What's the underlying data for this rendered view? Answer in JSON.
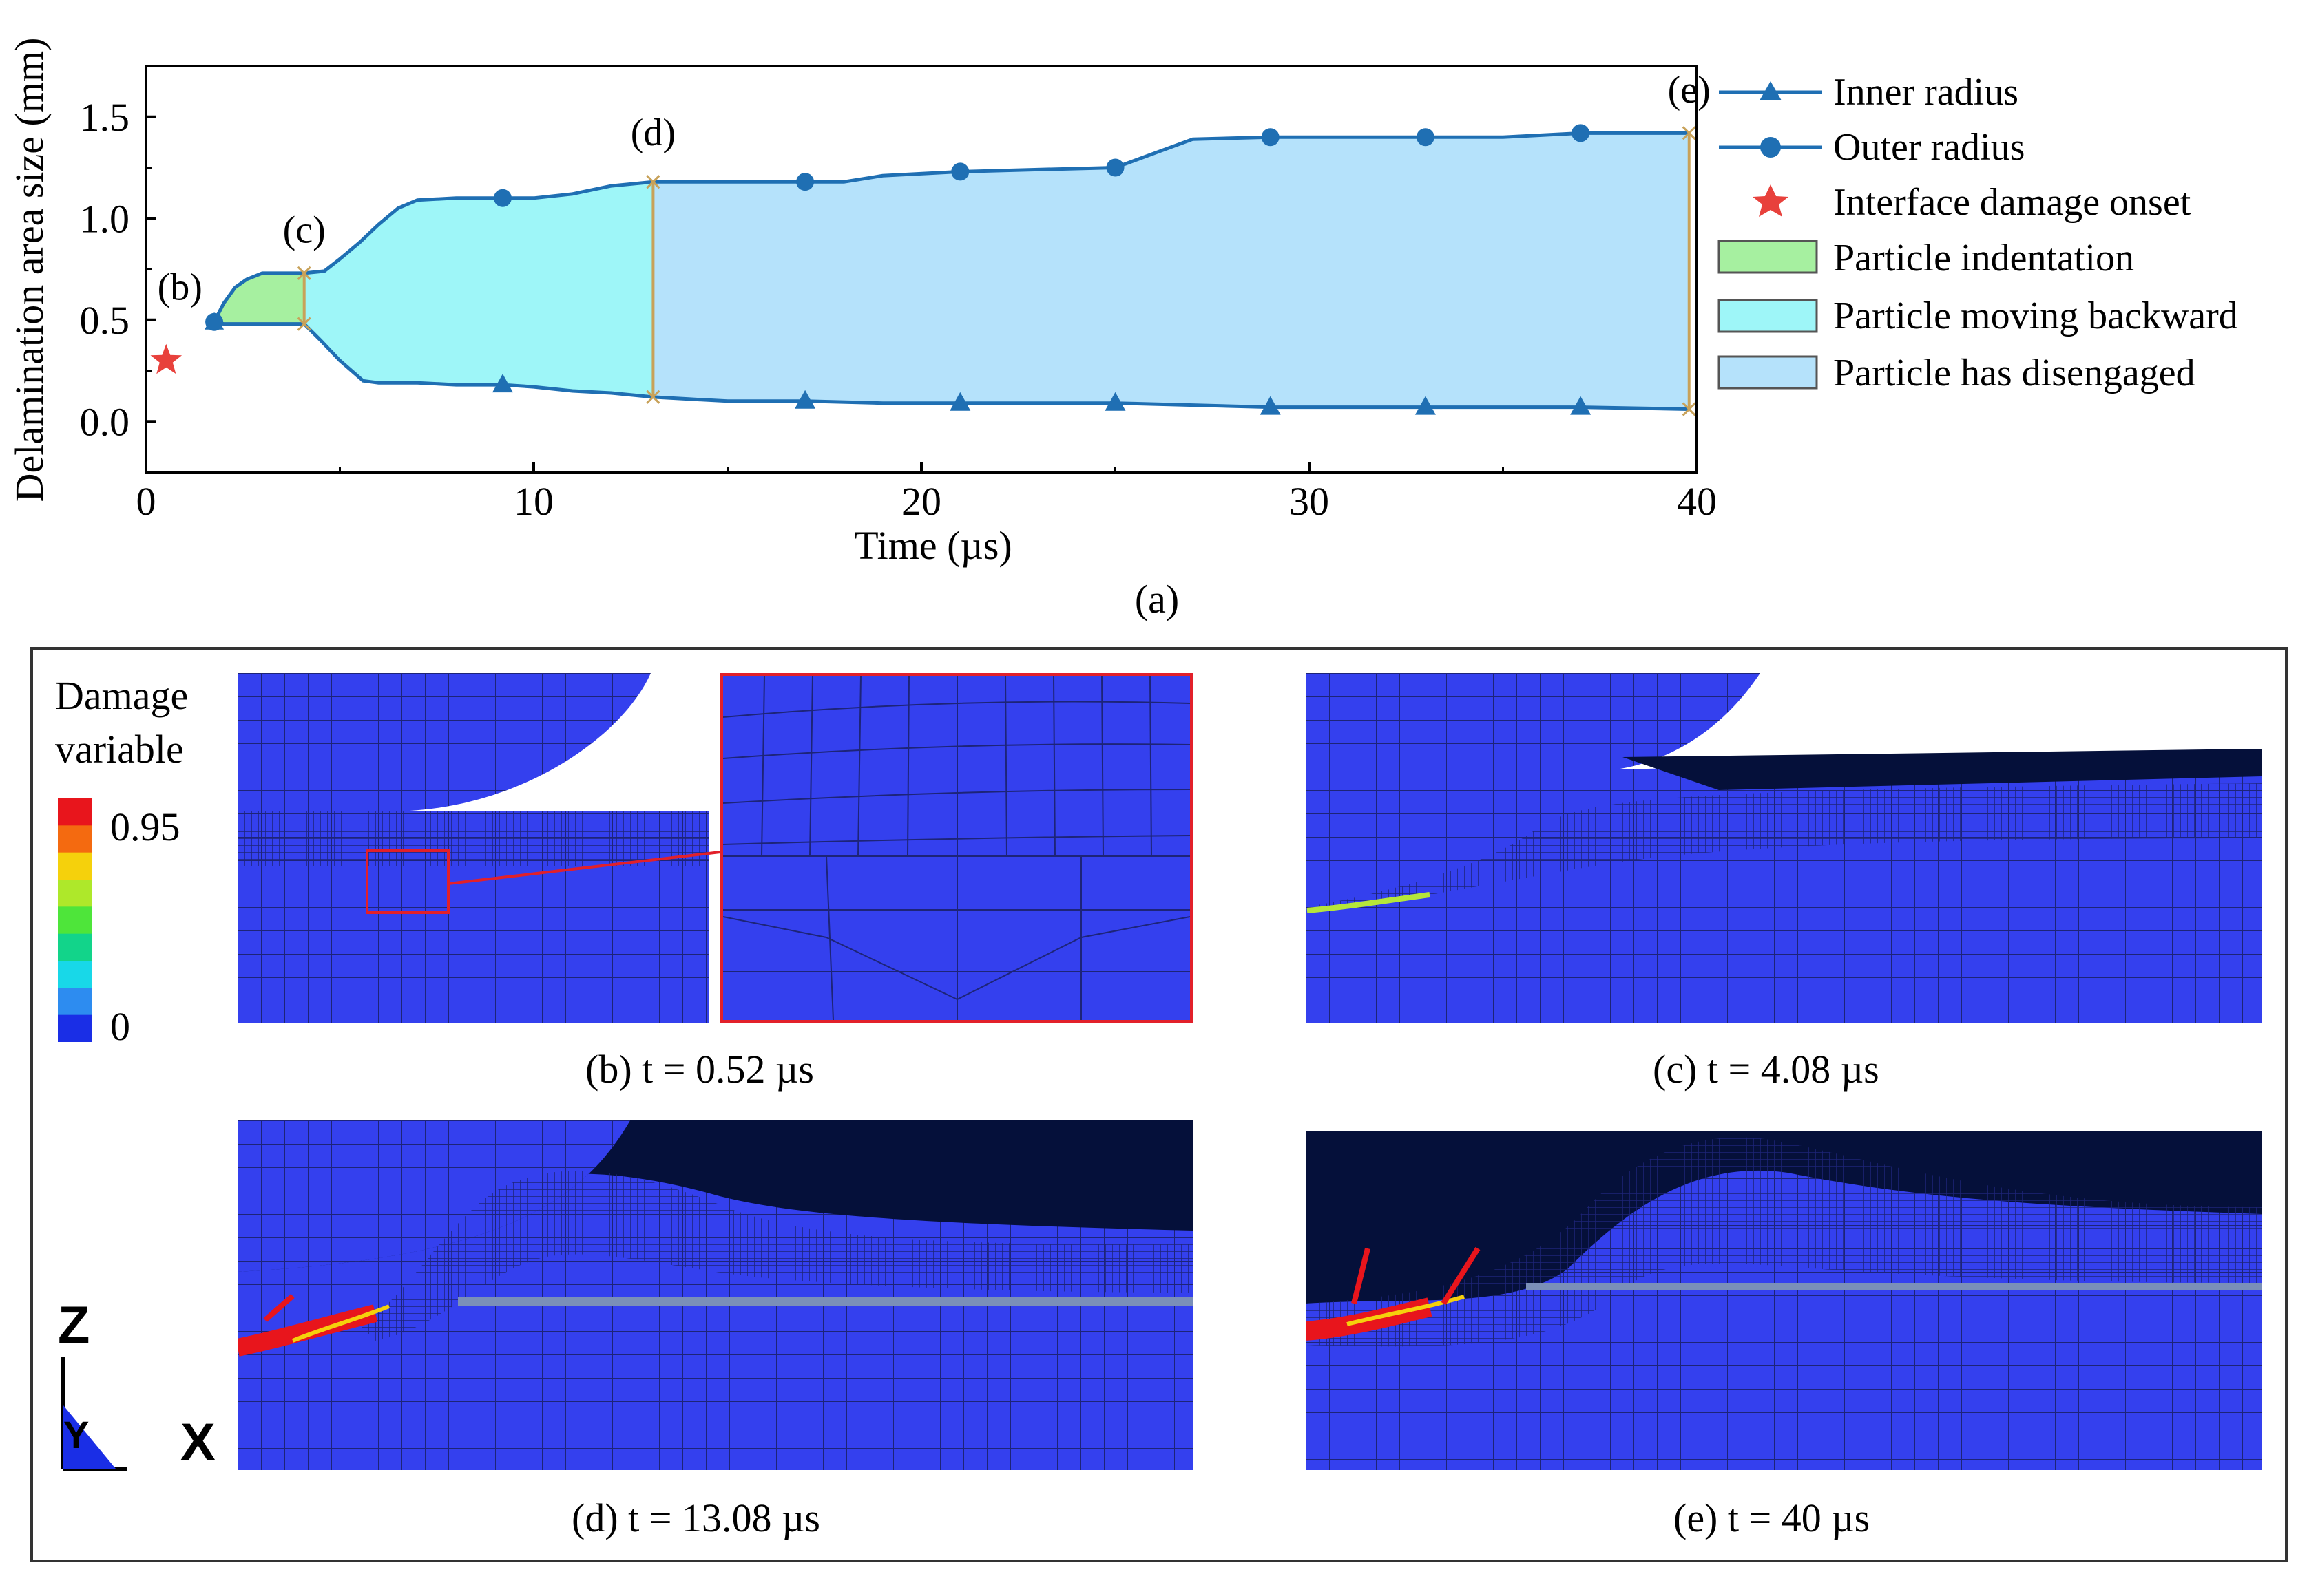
{
  "chart_data": {
    "type": "area",
    "xlabel": "Time (µs)",
    "ylabel": "Delamination area size (mm)",
    "xlim": [
      0,
      40
    ],
    "ylim": [
      -0.25,
      1.75
    ],
    "xticks": [
      0,
      10,
      20,
      30,
      40
    ],
    "yticks": [
      0.0,
      0.5,
      1.0,
      1.5
    ],
    "ytick_labels": [
      "0.0",
      "0.5",
      "1.0",
      "1.5"
    ],
    "series": [
      {
        "name": "Inner radius",
        "marker": "triangle",
        "color": "#1f6fb3",
        "x": [
          1.76,
          2.0,
          2.5,
          3.0,
          3.5,
          4.08,
          4.5,
          5.0,
          5.6,
          6.0,
          7.0,
          8.0,
          9.2,
          10.0,
          11.0,
          12.0,
          13.08,
          14.0,
          15.0,
          17.0,
          19.0,
          21.0,
          23.0,
          25.0,
          27.0,
          29.0,
          31.0,
          33.0,
          35.0,
          37.0,
          39.8
        ],
        "y": [
          0.49,
          0.48,
          0.48,
          0.48,
          0.48,
          0.48,
          0.4,
          0.3,
          0.2,
          0.19,
          0.19,
          0.18,
          0.18,
          0.17,
          0.15,
          0.14,
          0.12,
          0.11,
          0.1,
          0.1,
          0.09,
          0.09,
          0.09,
          0.09,
          0.08,
          0.07,
          0.07,
          0.07,
          0.07,
          0.07,
          0.06
        ]
      },
      {
        "name": "Outer radius",
        "marker": "circle",
        "color": "#1f6fb3",
        "x": [
          1.76,
          2.0,
          2.3,
          2.6,
          3.0,
          3.5,
          4.08,
          4.6,
          5.0,
          5.5,
          6.0,
          6.5,
          7.0,
          8.0,
          9.2,
          10.0,
          11.0,
          12.0,
          13.08,
          14.0,
          15.0,
          17.0,
          18.0,
          19.0,
          21.0,
          23.0,
          25.0,
          26.0,
          27.0,
          29.0,
          31.0,
          33.0,
          35.0,
          37.0,
          39.8
        ],
        "y": [
          0.49,
          0.58,
          0.66,
          0.7,
          0.73,
          0.73,
          0.73,
          0.74,
          0.8,
          0.88,
          0.97,
          1.05,
          1.09,
          1.1,
          1.1,
          1.1,
          1.12,
          1.16,
          1.18,
          1.18,
          1.18,
          1.18,
          1.18,
          1.21,
          1.23,
          1.24,
          1.25,
          1.32,
          1.39,
          1.4,
          1.4,
          1.4,
          1.4,
          1.42,
          1.42
        ]
      }
    ],
    "scatter": [
      {
        "name": "Interface damage onset",
        "marker": "star",
        "color": "#e8413c",
        "x": 0.52,
        "y": 0.3
      }
    ],
    "regions": [
      {
        "name": "Particle indentation",
        "x_range": [
          1.76,
          4.08
        ],
        "color": "#a6f0a0"
      },
      {
        "name": "Particle moving backward",
        "x_range": [
          4.08,
          13.08
        ],
        "color": "#9ef6f8"
      },
      {
        "name": "Particle has disengaged",
        "x_range": [
          13.08,
          39.8
        ],
        "color": "#b5e2fb"
      }
    ],
    "annotations": [
      {
        "text": "(b)",
        "x": 0.52
      },
      {
        "text": "(c)",
        "x": 4.08
      },
      {
        "text": "(d)",
        "x": 13.08
      },
      {
        "text": "(e)",
        "x": 39.8
      }
    ],
    "panel_label": "(a)"
  },
  "legend": {
    "inner": "Inner radius",
    "outer": "Outer radius",
    "onset": "Interface damage onset",
    "indent": "Particle indentation",
    "backward": "Particle moving backward",
    "disengaged": "Particle has disengaged"
  },
  "colorbar": {
    "title_line1": "Damage",
    "title_line2": "variable",
    "max_label": "0.95",
    "min_label": "0",
    "colors": [
      "#e8151c",
      "#f46a10",
      "#f5d10c",
      "#aee82a",
      "#4ee53a",
      "#12d48a",
      "#18d8e8",
      "#2d8cf0",
      "#1a2ee6"
    ]
  },
  "captions": {
    "b": "(b) t = 0.52 µs",
    "c": "(c) t = 4.08 µs",
    "d": "(d) t = 13.08 µs",
    "e": "(e) t = 40 µs"
  },
  "triad": {
    "z": "Z",
    "y": "Y",
    "x": "X"
  }
}
